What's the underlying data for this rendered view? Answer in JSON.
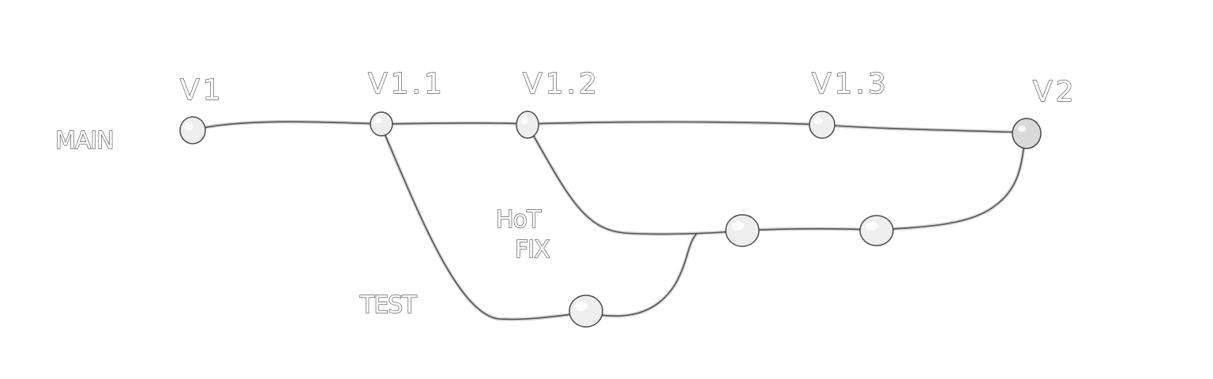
{
  "diagram": {
    "type": "git-branch-graph",
    "branches": {
      "main": "MAIN",
      "hotfix_line1": "HoT",
      "hotfix_line2": "FIX",
      "test": "TEST"
    },
    "tags": {
      "v1": "V1",
      "v1_1": "V1.1",
      "v1_2": "V1.2",
      "v1_3": "V1.3",
      "v2": "V2"
    },
    "commits": {
      "main": [
        "v1",
        "v1.1",
        "v1.2",
        "v1.3",
        "v2"
      ],
      "hotfix": [
        "hotfix-1",
        "hotfix-2"
      ],
      "test": [
        "test-1"
      ]
    },
    "edges": [
      {
        "from": "v1",
        "to": "v1.1",
        "branch": "main"
      },
      {
        "from": "v1.1",
        "to": "v1.2",
        "branch": "main"
      },
      {
        "from": "v1.2",
        "to": "v1.3",
        "branch": "main"
      },
      {
        "from": "v1.3",
        "to": "v2",
        "branch": "main"
      },
      {
        "from": "v1.1",
        "to": "test-1",
        "branch": "test"
      },
      {
        "from": "v1.2",
        "to": "hotfix-1",
        "branch": "hotfix"
      },
      {
        "from": "test-1",
        "to": "hotfix-1",
        "branch": "merge"
      },
      {
        "from": "hotfix-1",
        "to": "hotfix-2",
        "branch": "hotfix"
      },
      {
        "from": "hotfix-2",
        "to": "v2",
        "branch": "merge"
      }
    ]
  }
}
